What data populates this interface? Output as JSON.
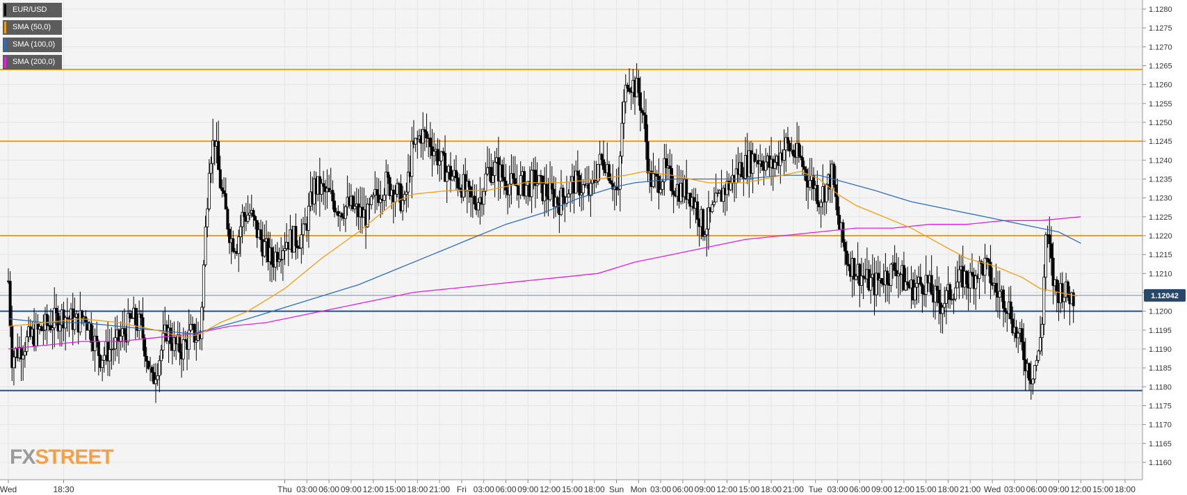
{
  "chart_data": {
    "type": "candlestick",
    "symbol": "EUR/USD",
    "colors": {
      "bull_candle": "#ffffff",
      "bear_candle": "#000000",
      "sma50": "#f39c12",
      "sma100": "#2a6ebb",
      "sma200": "#e020e0",
      "resistance": "#f39c12",
      "support": "#1f4e9a",
      "price_tag": "#27476b"
    },
    "legend": [
      {
        "label": "EUR/USD",
        "color": "#000000"
      },
      {
        "label": "SMA (50,0)",
        "color": "#f39c12"
      },
      {
        "label": "SMA (100,0)",
        "color": "#2a6ebb"
      },
      {
        "label": "SMA (200,0)",
        "color": "#e020e0"
      }
    ],
    "y_axis": {
      "min": 1.1155,
      "max": 1.1283,
      "ticks": [
        "1.1160",
        "1.1165",
        "1.1170",
        "1.1175",
        "1.1180",
        "1.1185",
        "1.1190",
        "1.1195",
        "1.1200",
        "1.1205",
        "1.1210",
        "1.1215",
        "1.1220",
        "1.1225",
        "1.1230",
        "1.1235",
        "1.1240",
        "1.1245",
        "1.1250",
        "1.1255",
        "1.1260",
        "1.1265",
        "1.1270",
        "1.1275",
        "1.1280"
      ]
    },
    "x_axis": {
      "bars_per_hour": 4,
      "ticks": [
        {
          "bar": 0,
          "label": "Wed"
        },
        {
          "bar": 30,
          "label": "18:30"
        },
        {
          "bar": 150,
          "label": "Thu"
        },
        {
          "bar": 162,
          "label": "03:00"
        },
        {
          "bar": 174,
          "label": "06:00"
        },
        {
          "bar": 186,
          "label": "09:00"
        },
        {
          "bar": 198,
          "label": "12:00"
        },
        {
          "bar": 210,
          "label": "15:00"
        },
        {
          "bar": 222,
          "label": "18:00"
        },
        {
          "bar": 234,
          "label": "21:00"
        },
        {
          "bar": 246,
          "label": "Fri"
        },
        {
          "bar": 258,
          "label": "03:00"
        },
        {
          "bar": 270,
          "label": "06:00"
        },
        {
          "bar": 282,
          "label": "09:00"
        },
        {
          "bar": 294,
          "label": "12:00"
        },
        {
          "bar": 306,
          "label": "15:00"
        },
        {
          "bar": 318,
          "label": "18:00"
        },
        {
          "bar": 330,
          "label": "Sun"
        },
        {
          "bar": 342,
          "label": "Mon"
        },
        {
          "bar": 354,
          "label": "03:00"
        },
        {
          "bar": 366,
          "label": "06:00"
        },
        {
          "bar": 378,
          "label": "09:00"
        },
        {
          "bar": 390,
          "label": "12:00"
        },
        {
          "bar": 402,
          "label": "15:00"
        },
        {
          "bar": 414,
          "label": "18:00"
        },
        {
          "bar": 426,
          "label": "21:00"
        },
        {
          "bar": 438,
          "label": "Tue"
        },
        {
          "bar": 450,
          "label": "03:00"
        },
        {
          "bar": 462,
          "label": "06:00"
        },
        {
          "bar": 474,
          "label": "09:00"
        },
        {
          "bar": 486,
          "label": "12:00"
        },
        {
          "bar": 498,
          "label": "15:00"
        },
        {
          "bar": 510,
          "label": "18:00"
        },
        {
          "bar": 522,
          "label": "21:00"
        },
        {
          "bar": 534,
          "label": "Wed"
        },
        {
          "bar": 546,
          "label": "03:00"
        },
        {
          "bar": 558,
          "label": "06:00"
        },
        {
          "bar": 570,
          "label": "09:00"
        },
        {
          "bar": 582,
          "label": "12:00"
        },
        {
          "bar": 594,
          "label": "15:00"
        },
        {
          "bar": 606,
          "label": "18:00"
        }
      ],
      "total_bars": 614
    },
    "horizontal_levels": [
      {
        "price": 1.1264,
        "role": "resistance"
      },
      {
        "price": 1.1245,
        "role": "resistance"
      },
      {
        "price": 1.122,
        "role": "resistance"
      },
      {
        "price": 1.12,
        "role": "support"
      },
      {
        "price": 1.1179,
        "role": "support"
      }
    ],
    "last_price": {
      "value": 1.12042,
      "label": "1.12042"
    },
    "price_anchors": [
      [
        0,
        1.1208
      ],
      [
        2,
        1.1188
      ],
      [
        6,
        1.119
      ],
      [
        12,
        1.1193
      ],
      [
        20,
        1.1196
      ],
      [
        30,
        1.1199
      ],
      [
        37,
        1.1197
      ],
      [
        42,
        1.1199
      ],
      [
        46,
        1.1193
      ],
      [
        50,
        1.1188
      ],
      [
        58,
        1.1191
      ],
      [
        64,
        1.1195
      ],
      [
        67,
        1.1198
      ],
      [
        72,
        1.1196
      ],
      [
        78,
        1.1181
      ],
      [
        82,
        1.1188
      ],
      [
        86,
        1.1195
      ],
      [
        90,
        1.1191
      ],
      [
        94,
        1.119
      ],
      [
        99,
        1.1194
      ],
      [
        104,
        1.1193
      ],
      [
        109,
        1.124
      ],
      [
        112,
        1.1246
      ],
      [
        114,
        1.1237
      ],
      [
        117,
        1.1228
      ],
      [
        121,
        1.1219
      ],
      [
        124,
        1.1218
      ],
      [
        127,
        1.1225
      ],
      [
        131,
        1.1226
      ],
      [
        135,
        1.1221
      ],
      [
        139,
        1.1217
      ],
      [
        143,
        1.1213
      ],
      [
        146,
        1.1216
      ],
      [
        151,
        1.1219
      ],
      [
        155,
        1.1219
      ],
      [
        160,
        1.122
      ],
      [
        163,
        1.1226
      ],
      [
        166,
        1.1233
      ],
      [
        170,
        1.1232
      ],
      [
        175,
        1.123
      ],
      [
        180,
        1.1227
      ],
      [
        185,
        1.1228
      ],
      [
        190,
        1.1226
      ],
      [
        195,
        1.1225
      ],
      [
        200,
        1.1231
      ],
      [
        205,
        1.1234
      ],
      [
        210,
        1.1232
      ],
      [
        215,
        1.1228
      ],
      [
        219,
        1.1242
      ],
      [
        224,
        1.1247
      ],
      [
        229,
        1.1245
      ],
      [
        234,
        1.124
      ],
      [
        238,
        1.1237
      ],
      [
        243,
        1.1235
      ],
      [
        247,
        1.1233
      ],
      [
        251,
        1.1229
      ],
      [
        256,
        1.123
      ],
      [
        260,
        1.1237
      ],
      [
        265,
        1.1238
      ],
      [
        269,
        1.1235
      ],
      [
        274,
        1.1233
      ],
      [
        278,
        1.1234
      ],
      [
        282,
        1.1233
      ],
      [
        286,
        1.1235
      ],
      [
        290,
        1.1232
      ],
      [
        294,
        1.1231
      ],
      [
        299,
        1.1229
      ],
      [
        303,
        1.1232
      ],
      [
        307,
        1.1234
      ],
      [
        311,
        1.1233
      ],
      [
        316,
        1.1231
      ],
      [
        320,
        1.1239
      ],
      [
        324,
        1.124
      ],
      [
        327,
        1.1236
      ],
      [
        331,
        1.123
      ],
      [
        333,
        1.125
      ],
      [
        336,
        1.1262
      ],
      [
        339,
        1.126
      ],
      [
        342,
        1.1258
      ],
      [
        345,
        1.125
      ],
      [
        348,
        1.1235
      ],
      [
        352,
        1.1234
      ],
      [
        356,
        1.1237
      ],
      [
        360,
        1.1234
      ],
      [
        365,
        1.1232
      ],
      [
        369,
        1.1232
      ],
      [
        374,
        1.1227
      ],
      [
        377,
        1.1222
      ],
      [
        380,
        1.1224
      ],
      [
        384,
        1.1228
      ],
      [
        388,
        1.1232
      ],
      [
        392,
        1.1234
      ],
      [
        397,
        1.1238
      ],
      [
        401,
        1.1239
      ],
      [
        405,
        1.1241
      ],
      [
        410,
        1.124
      ],
      [
        414,
        1.1238
      ],
      [
        418,
        1.1241
      ],
      [
        422,
        1.1244
      ],
      [
        426,
        1.1242
      ],
      [
        430,
        1.124
      ],
      [
        433,
        1.1236
      ],
      [
        437,
        1.1234
      ],
      [
        440,
        1.123
      ],
      [
        444,
        1.1233
      ],
      [
        447,
        1.1236
      ],
      [
        451,
        1.1222
      ],
      [
        455,
        1.1214
      ],
      [
        458,
        1.1212
      ],
      [
        462,
        1.121
      ],
      [
        466,
        1.1208
      ],
      [
        470,
        1.1207
      ],
      [
        474,
        1.1209
      ],
      [
        478,
        1.121
      ],
      [
        482,
        1.1212
      ],
      [
        486,
        1.1208
      ],
      [
        490,
        1.1206
      ],
      [
        494,
        1.1207
      ],
      [
        498,
        1.1208
      ],
      [
        502,
        1.1204
      ],
      [
        506,
        1.1202
      ],
      [
        510,
        1.1204
      ],
      [
        514,
        1.1207
      ],
      [
        518,
        1.1209
      ],
      [
        522,
        1.1208
      ],
      [
        526,
        1.1211
      ],
      [
        530,
        1.1212
      ],
      [
        533,
        1.1209
      ],
      [
        536,
        1.1205
      ],
      [
        540,
        1.1204
      ],
      [
        544,
        1.12
      ],
      [
        546,
        1.1195
      ],
      [
        549,
        1.1192
      ],
      [
        552,
        1.1187
      ],
      [
        555,
        1.1183
      ],
      [
        557,
        1.1186
      ],
      [
        559,
        1.1188
      ],
      [
        561,
        1.1198
      ],
      [
        563,
        1.122
      ],
      [
        565,
        1.1216
      ],
      [
        567,
        1.1208
      ],
      [
        569,
        1.1205
      ],
      [
        572,
        1.1206
      ],
      [
        575,
        1.1204
      ],
      [
        578,
        1.1204
      ]
    ],
    "sma50": [
      [
        0,
        1.1196
      ],
      [
        20,
        1.1197
      ],
      [
        40,
        1.1198
      ],
      [
        60,
        1.1197
      ],
      [
        80,
        1.1195
      ],
      [
        96,
        1.1193
      ],
      [
        104,
        1.1194
      ],
      [
        115,
        1.1197
      ],
      [
        130,
        1.12
      ],
      [
        150,
        1.1206
      ],
      [
        170,
        1.1214
      ],
      [
        190,
        1.1221
      ],
      [
        210,
        1.1229
      ],
      [
        220,
        1.1231
      ],
      [
        240,
        1.1232
      ],
      [
        260,
        1.1232
      ],
      [
        280,
        1.1234
      ],
      [
        300,
        1.1234
      ],
      [
        320,
        1.1235
      ],
      [
        335,
        1.1236
      ],
      [
        345,
        1.1237
      ],
      [
        360,
        1.1236
      ],
      [
        380,
        1.1234
      ],
      [
        400,
        1.1234
      ],
      [
        420,
        1.1236
      ],
      [
        430,
        1.1237
      ],
      [
        440,
        1.1235
      ],
      [
        450,
        1.1231
      ],
      [
        460,
        1.1228
      ],
      [
        475,
        1.1225
      ],
      [
        490,
        1.1222
      ],
      [
        505,
        1.1218
      ],
      [
        520,
        1.1214
      ],
      [
        535,
        1.1212
      ],
      [
        550,
        1.1209
      ],
      [
        560,
        1.1206
      ],
      [
        570,
        1.1205
      ],
      [
        580,
        1.1204
      ]
    ],
    "sma100": [
      [
        0,
        1.1198
      ],
      [
        20,
        1.1197
      ],
      [
        40,
        1.1197
      ],
      [
        60,
        1.1196
      ],
      [
        80,
        1.1195
      ],
      [
        100,
        1.1194
      ],
      [
        115,
        1.1196
      ],
      [
        130,
        1.1198
      ],
      [
        150,
        1.1201
      ],
      [
        170,
        1.1204
      ],
      [
        190,
        1.1207
      ],
      [
        210,
        1.1211
      ],
      [
        230,
        1.1215
      ],
      [
        250,
        1.1219
      ],
      [
        270,
        1.1223
      ],
      [
        290,
        1.1226
      ],
      [
        310,
        1.123
      ],
      [
        330,
        1.1233
      ],
      [
        340,
        1.1234
      ],
      [
        360,
        1.1235
      ],
      [
        380,
        1.1235
      ],
      [
        400,
        1.1235
      ],
      [
        420,
        1.1236
      ],
      [
        440,
        1.1236
      ],
      [
        455,
        1.1234
      ],
      [
        470,
        1.1232
      ],
      [
        490,
        1.1229
      ],
      [
        510,
        1.1227
      ],
      [
        530,
        1.1225
      ],
      [
        550,
        1.1223
      ],
      [
        570,
        1.1221
      ],
      [
        582,
        1.1218
      ]
    ],
    "sma200": [
      [
        0,
        1.119
      ],
      [
        20,
        1.1191
      ],
      [
        40,
        1.1192
      ],
      [
        60,
        1.1192
      ],
      [
        80,
        1.1193
      ],
      [
        100,
        1.1194
      ],
      [
        120,
        1.1196
      ],
      [
        140,
        1.1197
      ],
      [
        160,
        1.1199
      ],
      [
        180,
        1.1201
      ],
      [
        200,
        1.1203
      ],
      [
        220,
        1.1205
      ],
      [
        240,
        1.1206
      ],
      [
        260,
        1.1207
      ],
      [
        280,
        1.1208
      ],
      [
        300,
        1.1209
      ],
      [
        320,
        1.121
      ],
      [
        340,
        1.1213
      ],
      [
        360,
        1.1215
      ],
      [
        380,
        1.1217
      ],
      [
        400,
        1.1219
      ],
      [
        420,
        1.122
      ],
      [
        440,
        1.1221
      ],
      [
        460,
        1.1222
      ],
      [
        480,
        1.1222
      ],
      [
        500,
        1.1223
      ],
      [
        520,
        1.1223
      ],
      [
        540,
        1.1224
      ],
      [
        560,
        1.1224
      ],
      [
        582,
        1.1225
      ]
    ]
  },
  "logo": {
    "part1": "FX",
    "part2": "STREET"
  }
}
